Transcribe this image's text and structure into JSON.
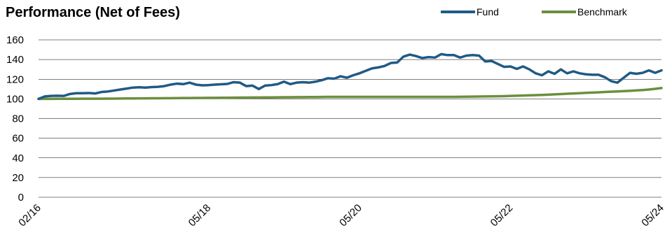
{
  "chart_data": {
    "type": "line",
    "title": "Performance (Net of Fees)",
    "xlabel": "",
    "ylabel": "",
    "ylim": [
      0,
      160
    ],
    "yticks": [
      0,
      20,
      40,
      60,
      80,
      100,
      120,
      140,
      160
    ],
    "xticks": [
      "02/16",
      "05/18",
      "05/20",
      "05/22",
      "05/24"
    ],
    "x_range": [
      "2016-02",
      "2024-05"
    ],
    "grid": true,
    "legend_position": "top-right",
    "x": [
      "2016-02",
      "2016-03",
      "2016-04",
      "2016-05",
      "2016-06",
      "2016-07",
      "2016-08",
      "2016-09",
      "2016-10",
      "2016-11",
      "2016-12",
      "2017-01",
      "2017-02",
      "2017-03",
      "2017-04",
      "2017-05",
      "2017-06",
      "2017-07",
      "2017-08",
      "2017-09",
      "2017-10",
      "2017-11",
      "2017-12",
      "2018-01",
      "2018-02",
      "2018-03",
      "2018-04",
      "2018-05",
      "2018-06",
      "2018-07",
      "2018-08",
      "2018-09",
      "2018-10",
      "2018-11",
      "2018-12",
      "2019-01",
      "2019-02",
      "2019-03",
      "2019-04",
      "2019-05",
      "2019-06",
      "2019-07",
      "2019-08",
      "2019-09",
      "2019-10",
      "2019-11",
      "2019-12",
      "2020-01",
      "2020-02",
      "2020-03",
      "2020-04",
      "2020-05",
      "2020-06",
      "2020-07",
      "2020-08",
      "2020-09",
      "2020-10",
      "2020-11",
      "2020-12",
      "2021-01",
      "2021-02",
      "2021-03",
      "2021-04",
      "2021-05",
      "2021-06",
      "2021-07",
      "2021-08",
      "2021-09",
      "2021-10",
      "2021-11",
      "2021-12",
      "2022-01",
      "2022-02",
      "2022-03",
      "2022-04",
      "2022-05",
      "2022-06",
      "2022-07",
      "2022-08",
      "2022-09",
      "2022-10",
      "2022-11",
      "2022-12",
      "2023-01",
      "2023-02",
      "2023-03",
      "2023-04",
      "2023-05",
      "2023-06",
      "2023-07",
      "2023-08",
      "2023-09",
      "2023-10",
      "2023-11",
      "2023-12",
      "2024-01",
      "2024-02",
      "2024-03",
      "2024-04",
      "2024-05"
    ],
    "series": [
      {
        "name": "Fund",
        "color": "#1f5a85",
        "values": [
          100,
          102.5,
          103,
          103.2,
          103,
          105,
          105.8,
          105.8,
          106,
          105.5,
          107,
          107.5,
          108.5,
          109.5,
          110.5,
          111.5,
          111.8,
          111.5,
          112,
          112.3,
          113,
          114.5,
          115.5,
          115,
          116.5,
          114.5,
          113.8,
          114,
          114.5,
          114.8,
          115.2,
          117,
          116.5,
          113,
          113.5,
          110,
          113.5,
          114,
          115,
          117.5,
          115,
          116.5,
          117,
          116.5,
          117.5,
          119,
          121,
          120.5,
          123,
          121.5,
          124,
          126,
          128.5,
          131,
          132,
          133.5,
          136.5,
          137,
          143,
          145,
          143.5,
          141.5,
          142.5,
          142,
          145.5,
          144.5,
          144.5,
          142,
          144,
          144.5,
          144,
          138,
          138.5,
          135.5,
          132.5,
          133,
          130.5,
          133,
          130,
          126,
          124,
          128,
          125.5,
          130,
          126,
          128,
          126,
          125,
          124.5,
          124.5,
          122,
          118,
          116.5,
          121.5,
          126.5,
          125.5,
          126.5,
          129,
          126.5,
          129
        ]
      },
      {
        "name": "Benchmark",
        "color": "#6b8f3d",
        "values": [
          100,
          100.02,
          100.04,
          100.06,
          100.08,
          100.1,
          100.12,
          100.14,
          100.16,
          100.18,
          100.2,
          100.25,
          100.3,
          100.35,
          100.4,
          100.45,
          100.5,
          100.55,
          100.6,
          100.65,
          100.7,
          100.75,
          100.8,
          100.85,
          100.9,
          100.95,
          101,
          101.05,
          101.1,
          101.15,
          101.2,
          101.25,
          101.3,
          101.35,
          101.4,
          101.45,
          101.5,
          101.55,
          101.6,
          101.65,
          101.7,
          101.75,
          101.8,
          101.85,
          101.9,
          101.95,
          102,
          102,
          102,
          102,
          102,
          102,
          102,
          102,
          102,
          102,
          102,
          102,
          102,
          102,
          102,
          102,
          102,
          102,
          102,
          102,
          102,
          102.1,
          102.2,
          102.3,
          102.4,
          102.5,
          102.6,
          102.7,
          102.8,
          103,
          103.2,
          103.4,
          103.6,
          103.8,
          104,
          104.3,
          104.6,
          104.9,
          105.2,
          105.5,
          105.8,
          106.1,
          106.4,
          106.7,
          107,
          107.3,
          107.6,
          107.9,
          108.2,
          108.6,
          109,
          109.5,
          110.2,
          111
        ]
      }
    ]
  }
}
